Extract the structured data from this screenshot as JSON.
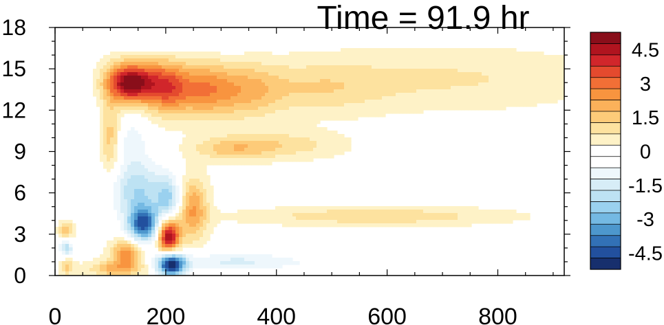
{
  "chart_data": {
    "type": "heatmap",
    "title": "Time = 91.9 hr",
    "xlabel": "",
    "ylabel": "",
    "xlim": [
      0,
      920
    ],
    "ylim": [
      0,
      18
    ],
    "x_ticks": [
      0,
      200,
      400,
      600,
      800
    ],
    "x_tick_labels": [
      "0",
      "200",
      "400",
      "600",
      "800"
    ],
    "y_ticks": [
      0,
      3,
      6,
      9,
      12,
      15,
      18
    ],
    "y_tick_labels": [
      "0",
      "3",
      "6",
      "9",
      "12",
      "15",
      "18"
    ],
    "colorbar": {
      "min": -5.25,
      "max": 5.25,
      "step": 0.5,
      "tick_values": [
        4.5,
        3,
        1.5,
        0,
        -1.5,
        -3,
        -4.5
      ],
      "tick_labels": [
        "4.5",
        "3",
        "1.5",
        "0",
        "-1.5",
        "-3",
        "-4.5"
      ],
      "colors": [
        "#890e1a",
        "#b0141f",
        "#d1262b",
        "#e44a2e",
        "#f26f36",
        "#f8943f",
        "#fbb15a",
        "#fdcb79",
        "#fde29f",
        "#fef2c7",
        "#ffffff",
        "#ffffff",
        "#eef7fc",
        "#d7edf7",
        "#bde2f3",
        "#9ad1ef",
        "#74b9e3",
        "#4d97cd",
        "#3271b6",
        "#22509e",
        "#172f6d"
      ]
    },
    "features": [
      {
        "type": "blob",
        "x": 135,
        "y": 14,
        "sx": 30,
        "sy": 1.0,
        "value": 5.2
      },
      {
        "type": "blob",
        "x": 200,
        "y": 13.7,
        "sx": 28,
        "sy": 1.3,
        "value": 3.2
      },
      {
        "type": "blob",
        "x": 265,
        "y": 13.5,
        "sx": 35,
        "sy": 1.4,
        "value": 2.2
      },
      {
        "type": "blob",
        "x": 340,
        "y": 13.4,
        "sx": 45,
        "sy": 1.4,
        "value": 1.6
      },
      {
        "type": "blob",
        "x": 470,
        "y": 13.6,
        "sx": 90,
        "sy": 1.3,
        "value": 1.0
      },
      {
        "type": "blob",
        "x": 720,
        "y": 14.3,
        "sx": 180,
        "sy": 1.5,
        "value": 0.8
      },
      {
        "type": "blob",
        "x": 320,
        "y": 9.2,
        "sx": 50,
        "sy": 0.6,
        "value": 1.4
      },
      {
        "type": "blob",
        "x": 420,
        "y": 9.5,
        "sx": 70,
        "sy": 0.7,
        "value": 1.0
      },
      {
        "type": "blob",
        "x": 205,
        "y": 2.9,
        "sx": 14,
        "sy": 0.9,
        "value": 5.0
      },
      {
        "type": "blob",
        "x": 250,
        "y": 4.8,
        "sx": 18,
        "sy": 1.6,
        "value": 2.3
      },
      {
        "type": "blob",
        "x": 130,
        "y": 1.6,
        "sx": 20,
        "sy": 0.7,
        "value": 2.6
      },
      {
        "type": "blob",
        "x": 110,
        "y": 0.5,
        "sx": 35,
        "sy": 0.4,
        "value": 1.8
      },
      {
        "type": "blob",
        "x": 100,
        "y": 10,
        "sx": 12,
        "sy": 2.0,
        "value": 1.5
      },
      {
        "type": "blob",
        "x": 20,
        "y": 3.3,
        "sx": 9,
        "sy": 0.4,
        "value": 1.8
      },
      {
        "type": "blob",
        "x": 22,
        "y": 0.6,
        "sx": 9,
        "sy": 0.4,
        "value": 1.4
      },
      {
        "type": "blob",
        "x": 580,
        "y": 4.3,
        "sx": 160,
        "sy": 0.45,
        "value": 1.2
      },
      {
        "type": "blob",
        "x": 160,
        "y": 3.7,
        "sx": 20,
        "sy": 0.9,
        "value": -4.2
      },
      {
        "type": "blob",
        "x": 210,
        "y": 0.8,
        "sx": 18,
        "sy": 0.6,
        "value": -5.2
      },
      {
        "type": "blob",
        "x": 150,
        "y": 6.2,
        "sx": 35,
        "sy": 1.5,
        "value": -2.2
      },
      {
        "type": "blob",
        "x": 205,
        "y": 5.5,
        "sx": 15,
        "sy": 1.2,
        "value": -2.0
      },
      {
        "type": "blob",
        "x": 140,
        "y": 9.8,
        "sx": 20,
        "sy": 1.2,
        "value": -1.0
      },
      {
        "type": "blob",
        "x": 20,
        "y": 2.0,
        "sx": 9,
        "sy": 0.4,
        "value": -2.0
      },
      {
        "type": "blob",
        "x": 320,
        "y": 1.0,
        "sx": 80,
        "sy": 0.5,
        "value": -1.2
      },
      {
        "type": "blob",
        "x": 560,
        "y": 1.0,
        "sx": 150,
        "sy": 0.45,
        "value": -0.5
      },
      {
        "type": "blob",
        "x": 250,
        "y": 17.0,
        "sx": 80,
        "sy": 0.7,
        "value": -0.5
      },
      {
        "type": "blob",
        "x": 40,
        "y": 12.0,
        "sx": 20,
        "sy": 3.0,
        "value": -0.5
      }
    ]
  }
}
